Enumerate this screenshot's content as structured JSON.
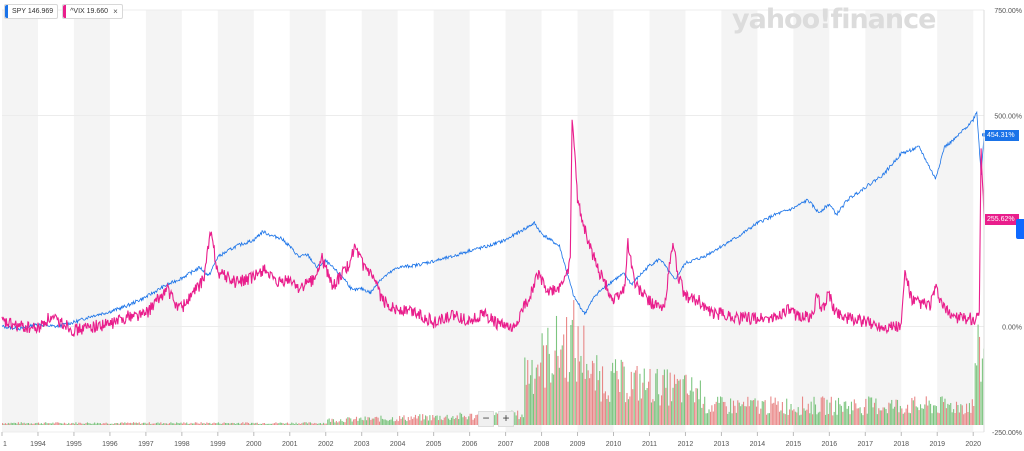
{
  "legend": {
    "spy": {
      "label": "SPY 146.969",
      "color": "#1a73e8"
    },
    "vix": {
      "label": "^VIX 19.660",
      "color": "#e91e8c"
    },
    "close_symbol": "×"
  },
  "watermark": "yahoo!finance",
  "zoom": {
    "minus": "−",
    "plus": "+"
  },
  "badges": {
    "spy": "454.31%",
    "vix": "255.62%"
  },
  "chart_data": {
    "type": "line",
    "xlabel": "",
    "ylabel": "",
    "x_tick_labels": [
      "1",
      "1994",
      "1995",
      "1996",
      "1997",
      "1998",
      "1999",
      "2000",
      "2001",
      "2002",
      "2003",
      "2004",
      "2005",
      "2006",
      "2007",
      "2008",
      "2009",
      "2010",
      "2011",
      "2012",
      "2013",
      "2014",
      "2015",
      "2016",
      "2017",
      "2018",
      "2019",
      "2020"
    ],
    "y_tick_labels": [
      "750.00%",
      "500.00%",
      "0.00%",
      "-250.00%"
    ],
    "ylim": [
      -250,
      750
    ],
    "xlim": [
      1993.0,
      2020.3
    ],
    "y_unit": "percent change",
    "series": [
      {
        "name": "SPY",
        "color": "#1a73e8",
        "x": [
          1993.0,
          1993.5,
          1994.0,
          1994.5,
          1995.0,
          1995.5,
          1996.0,
          1996.5,
          1997.0,
          1997.5,
          1998.0,
          1998.5,
          1998.75,
          1999.0,
          1999.5,
          2000.0,
          2000.25,
          2000.5,
          2000.75,
          2001.0,
          2001.25,
          2001.5,
          2001.75,
          2002.0,
          2002.5,
          2002.75,
          2003.0,
          2003.25,
          2003.5,
          2004.0,
          2004.5,
          2005.0,
          2005.5,
          2006.0,
          2006.5,
          2007.0,
          2007.5,
          2007.8,
          2008.0,
          2008.5,
          2008.9,
          2009.2,
          2009.5,
          2010.0,
          2010.3,
          2010.5,
          2011.0,
          2011.3,
          2011.7,
          2012.0,
          2012.5,
          2013.0,
          2013.5,
          2014.0,
          2014.5,
          2015.0,
          2015.4,
          2015.7,
          2016.0,
          2016.2,
          2016.5,
          2017.0,
          2017.5,
          2018.0,
          2018.5,
          2018.95,
          2019.2,
          2019.5,
          2020.0,
          2020.1,
          2020.22,
          2020.3
        ],
        "values": [
          0,
          -5,
          5,
          0,
          10,
          25,
          35,
          50,
          70,
          95,
          115,
          140,
          120,
          165,
          190,
          205,
          225,
          215,
          210,
          190,
          165,
          170,
          140,
          155,
          115,
          85,
          90,
          80,
          110,
          140,
          145,
          155,
          165,
          180,
          190,
          205,
          230,
          245,
          220,
          190,
          70,
          30,
          75,
          110,
          125,
          100,
          145,
          160,
          110,
          150,
          165,
          190,
          215,
          245,
          265,
          280,
          300,
          270,
          290,
          265,
          300,
          330,
          360,
          410,
          425,
          350,
          425,
          445,
          490,
          510,
          360,
          454.31
        ]
      },
      {
        "name": "^VIX",
        "color": "#e91e8c",
        "x": [
          1993.0,
          1993.5,
          1994.0,
          1994.3,
          1994.8,
          1995.0,
          1995.5,
          1996.0,
          1996.5,
          1997.0,
          1997.6,
          1997.8,
          1998.0,
          1998.6,
          1998.8,
          1999.0,
          1999.5,
          2000.0,
          2000.3,
          2000.6,
          2001.0,
          2001.3,
          2001.7,
          2001.9,
          2002.2,
          2002.6,
          2002.8,
          2003.0,
          2003.3,
          2003.6,
          2004.0,
          2004.5,
          2005.0,
          2005.5,
          2006.0,
          2006.4,
          2006.7,
          2007.0,
          2007.2,
          2007.6,
          2007.9,
          2008.2,
          2008.5,
          2008.8,
          2008.85,
          2009.0,
          2009.3,
          2009.6,
          2010.0,
          2010.3,
          2010.4,
          2010.6,
          2011.0,
          2011.4,
          2011.65,
          2011.8,
          2012.0,
          2012.4,
          2012.7,
          2013.0,
          2013.5,
          2014.0,
          2014.5,
          2014.8,
          2015.0,
          2015.5,
          2015.65,
          2015.8,
          2016.0,
          2016.1,
          2016.5,
          2017.0,
          2017.5,
          2018.0,
          2018.1,
          2018.3,
          2018.8,
          2018.95,
          2019.2,
          2019.6,
          2019.9,
          2020.0,
          2020.1,
          2020.17,
          2020.22,
          2020.3
        ],
        "values": [
          10,
          0,
          -5,
          20,
          5,
          -10,
          0,
          5,
          25,
          30,
          90,
          55,
          45,
          110,
          225,
          130,
          105,
          115,
          140,
          100,
          110,
          90,
          115,
          160,
          95,
          140,
          185,
          150,
          115,
          60,
          40,
          35,
          10,
          25,
          15,
          30,
          10,
          0,
          -10,
          60,
          125,
          80,
          90,
          150,
          500,
          300,
          200,
          130,
          60,
          90,
          200,
          100,
          60,
          40,
          200,
          120,
          70,
          60,
          30,
          30,
          20,
          20,
          20,
          40,
          30,
          20,
          70,
          40,
          80,
          40,
          20,
          10,
          0,
          0,
          130,
          60,
          50,
          90,
          40,
          20,
          20,
          10,
          30,
          20,
          420,
          255.62
        ]
      }
    ],
    "volume_note": "volume bars shown at bottom of chart"
  }
}
